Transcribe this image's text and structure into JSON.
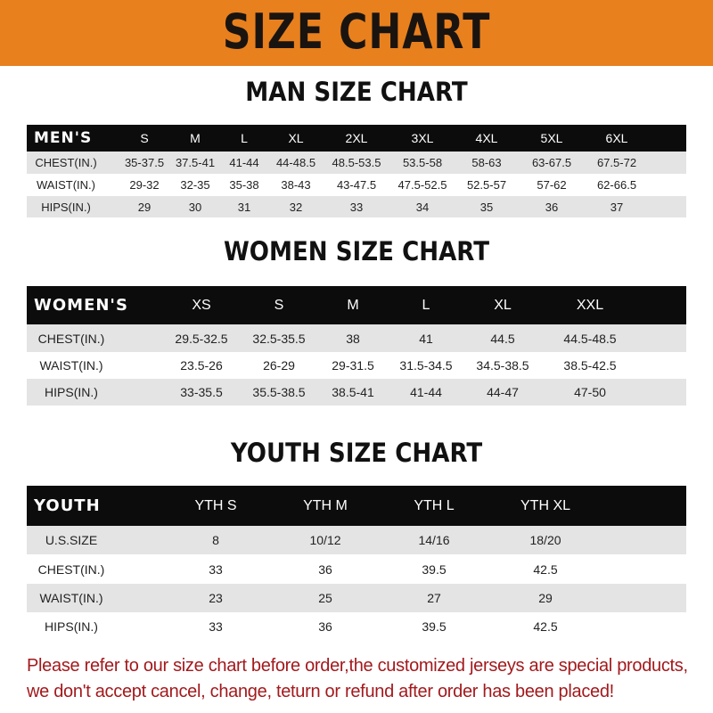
{
  "banner": {
    "title": "SIZE CHART",
    "color": "#e8801e"
  },
  "men": {
    "title": "MAN SIZE CHART",
    "corner": "MEN'S",
    "sizes": [
      "S",
      "M",
      "L",
      "XL",
      "2XL",
      "3XL",
      "4XL",
      "5XL",
      "6XL"
    ],
    "rows": [
      {
        "label": "CHEST(IN.)",
        "values": [
          "35-37.5",
          "37.5-41",
          "41-44",
          "44-48.5",
          "48.5-53.5",
          "53.5-58",
          "58-63",
          "63-67.5",
          "67.5-72"
        ]
      },
      {
        "label": "WAIST(IN.)",
        "values": [
          "29-32",
          "32-35",
          "35-38",
          "38-43",
          "43-47.5",
          "47.5-52.5",
          "52.5-57",
          "57-62",
          "62-66.5"
        ]
      },
      {
        "label": "HIPS(IN.)",
        "values": [
          "29",
          "30",
          "31",
          "32",
          "33",
          "34",
          "35",
          "36",
          "37"
        ]
      }
    ]
  },
  "women": {
    "title": "WOMEN SIZE CHART",
    "corner": "WOMEN'S",
    "sizes": [
      "XS",
      "S",
      "M",
      "L",
      "XL",
      "XXL"
    ],
    "rows": [
      {
        "label": "CHEST(IN.)",
        "values": [
          "29.5-32.5",
          "32.5-35.5",
          "38",
          "41",
          "44.5",
          "44.5-48.5"
        ]
      },
      {
        "label": "WAIST(IN.)",
        "values": [
          "23.5-26",
          "26-29",
          "29-31.5",
          "31.5-34.5",
          "34.5-38.5",
          "38.5-42.5"
        ]
      },
      {
        "label": "HIPS(IN.)",
        "values": [
          "33-35.5",
          "35.5-38.5",
          "38.5-41",
          "41-44",
          "44-47",
          "47-50"
        ]
      }
    ]
  },
  "youth": {
    "title": "YOUTH SIZE CHART",
    "corner": "YOUTH",
    "sizes": [
      "YTH S",
      "YTH M",
      "YTH L",
      "YTH XL"
    ],
    "rows": [
      {
        "label": "U.S.SIZE",
        "values": [
          "8",
          "10/12",
          "14/16",
          "18/20"
        ]
      },
      {
        "label": "CHEST(IN.)",
        "values": [
          "33",
          "36",
          "39.5",
          "42.5"
        ]
      },
      {
        "label": "WAIST(IN.)",
        "values": [
          "23",
          "25",
          "27",
          "29"
        ]
      },
      {
        "label": "HIPS(IN.)",
        "values": [
          "33",
          "36",
          "39.5",
          "42.5"
        ]
      }
    ]
  },
  "note": {
    "line1": "Please refer to our size chart before order,the customized jerseys are special products,",
    "line2": "we don't accept cancel, change, teturn or refund after order has been placed!",
    "color": "#a3191c"
  }
}
